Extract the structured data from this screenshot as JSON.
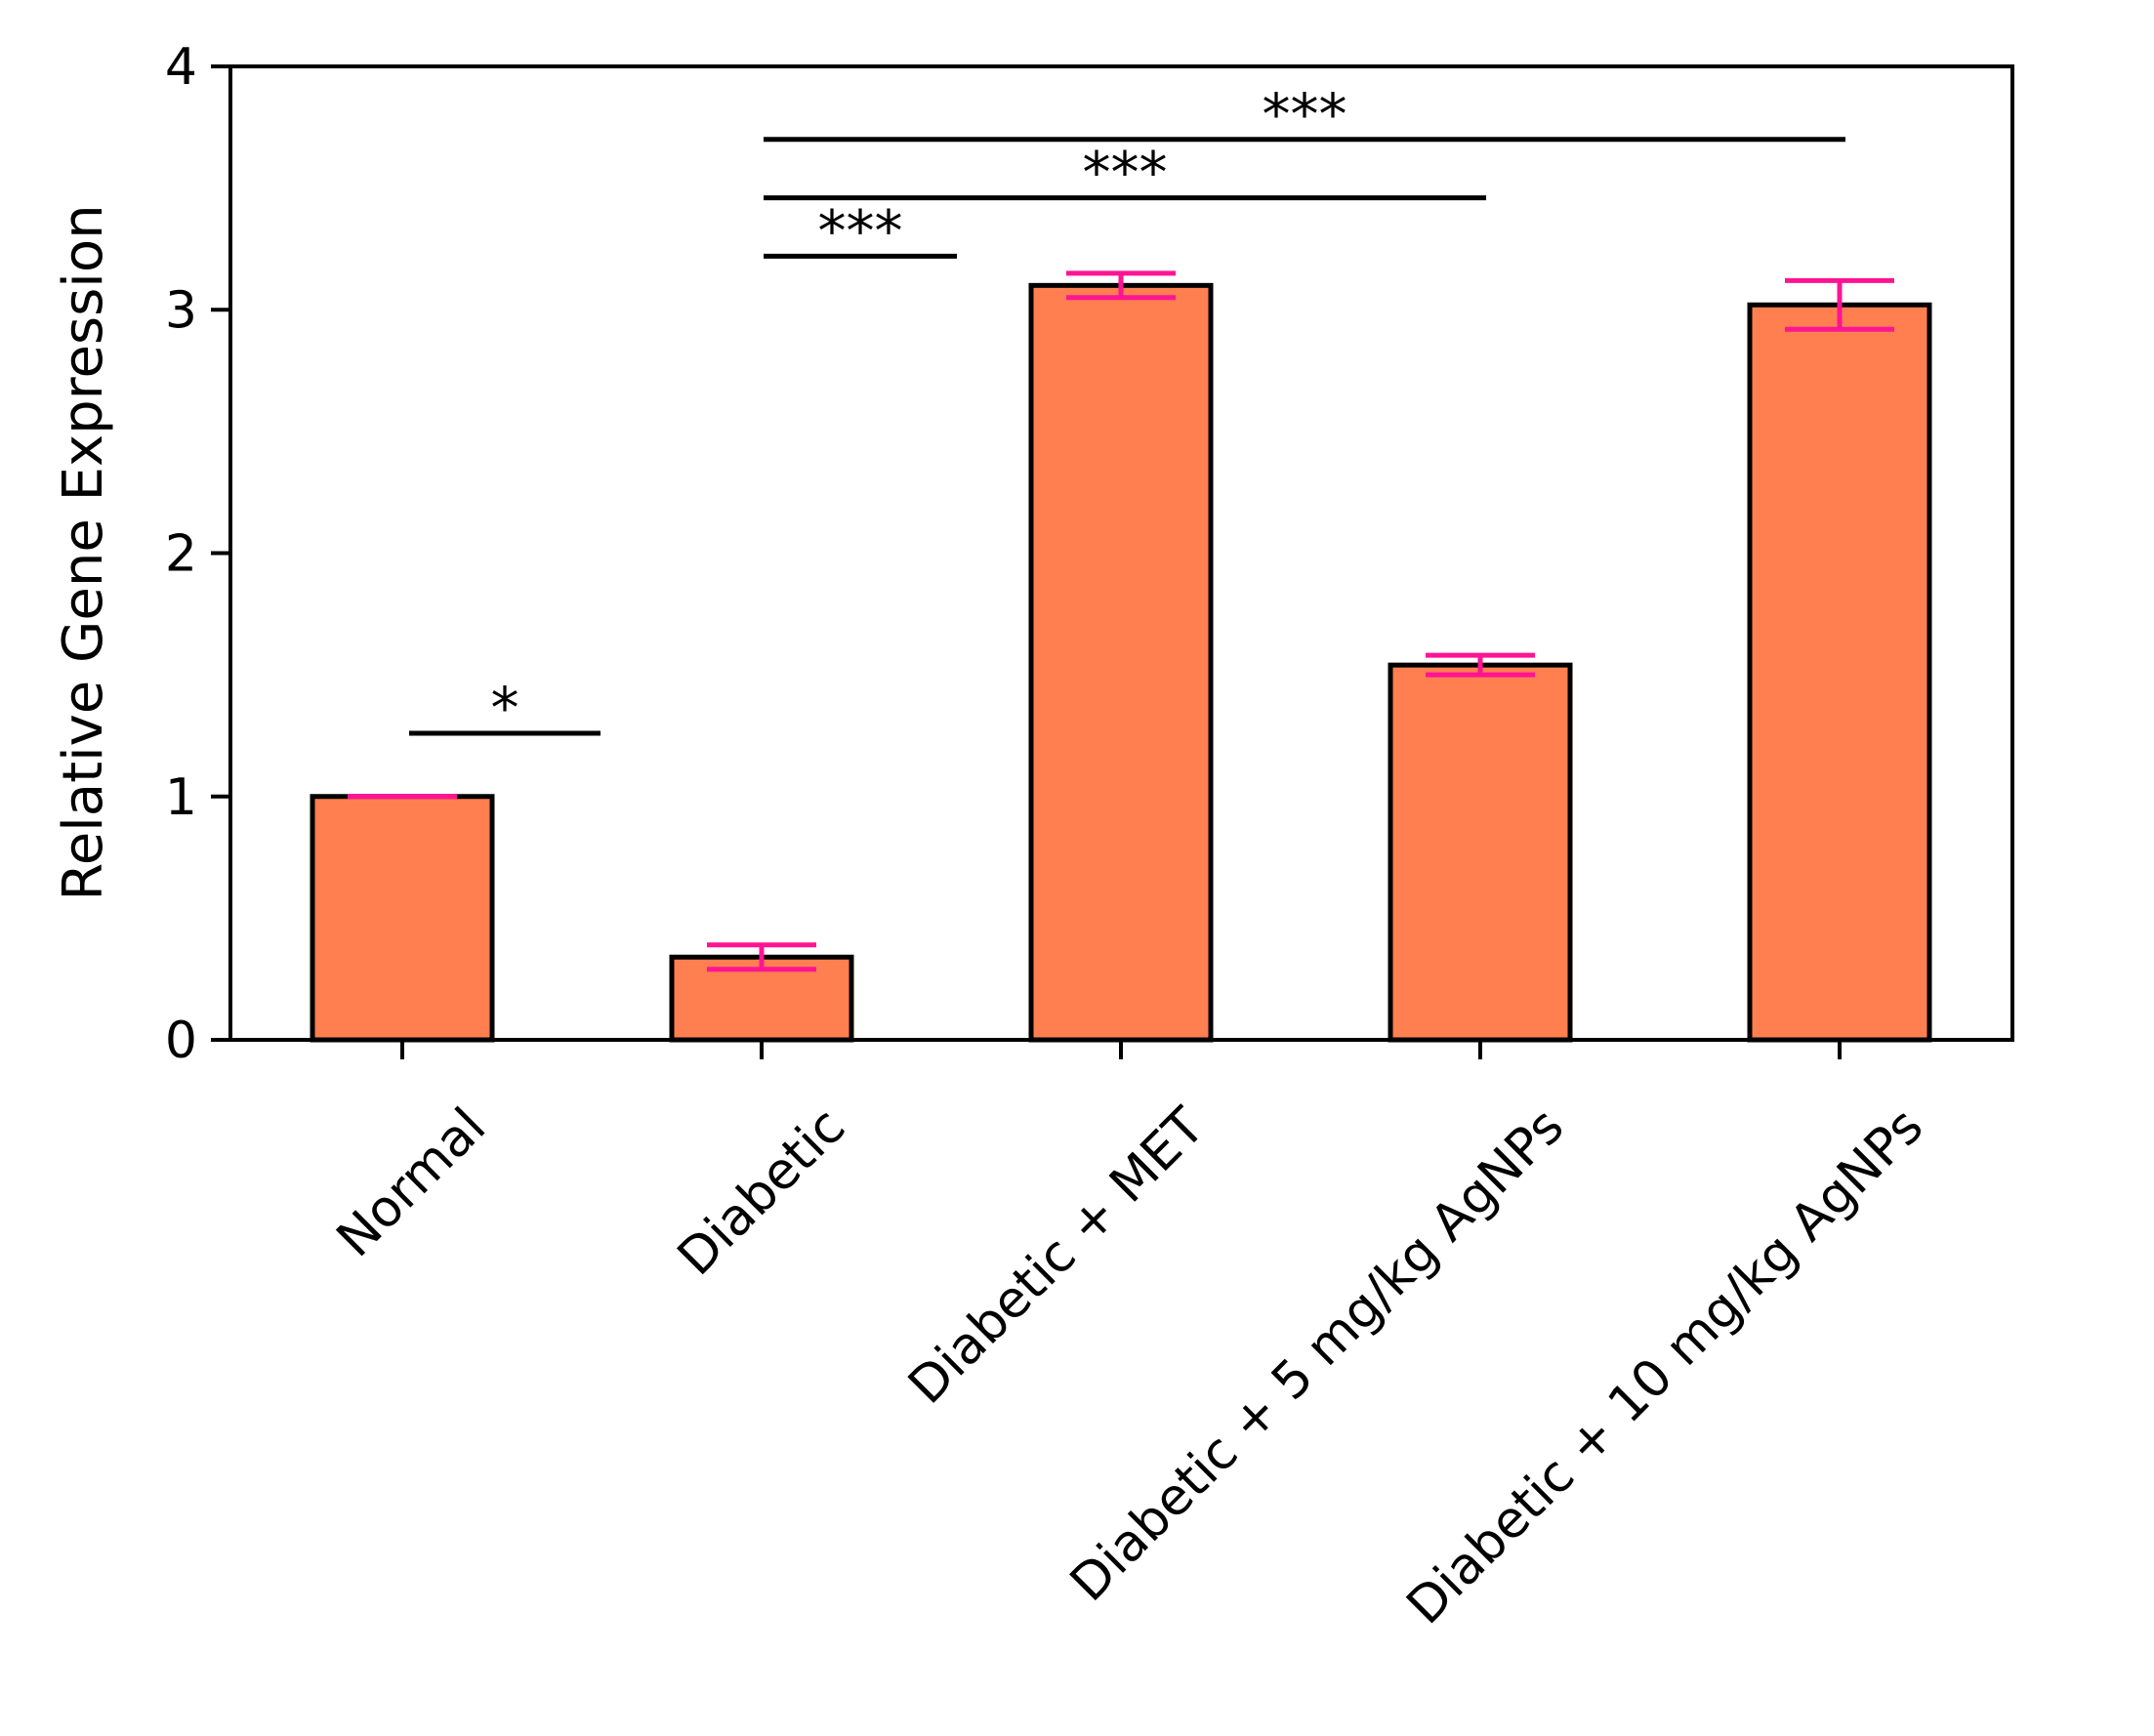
{
  "chart_data": {
    "type": "bar",
    "title": "",
    "xlabel": "",
    "ylabel": "Relative Gene Expression",
    "ylim": [
      0,
      4
    ],
    "yticks": [
      "0",
      "1",
      "2",
      "3",
      "4"
    ],
    "categories": [
      "Normal",
      "Diabetic",
      "Diabetic + MET",
      "Diabetic + 5 mg/kg AgNPs",
      "Diabetic + 10 mg/kg AgNPs"
    ],
    "values": [
      1.0,
      0.34,
      3.1,
      1.54,
      3.02
    ],
    "errors": [
      0.0,
      0.05,
      0.05,
      0.04,
      0.1
    ],
    "grid": false,
    "legend": "none",
    "colors": {
      "bar_fill": "#ff7f50",
      "bar_edge": "#000000",
      "error_bar": "#ff1493",
      "annotation": "#000000"
    },
    "significance": [
      {
        "label": "*",
        "from": 0,
        "to": 1,
        "y": 1.26
      },
      {
        "label": "***",
        "from": 1,
        "to": 2,
        "y": 3.22
      },
      {
        "label": "***",
        "from": 1,
        "to": 3,
        "y": 3.46
      },
      {
        "label": "***",
        "from": 1,
        "to": 4,
        "y": 3.7
      }
    ]
  }
}
